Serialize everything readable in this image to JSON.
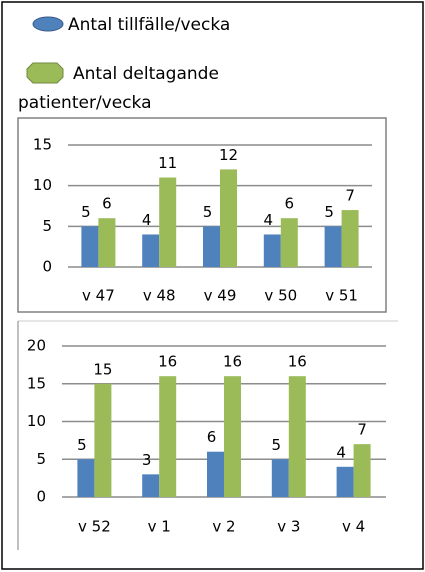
{
  "chart_data": [
    {
      "type": "bar",
      "categories": [
        "v 47",
        "v 48",
        "v 49",
        "v 50",
        "v 51"
      ],
      "series": [
        {
          "name": "Antal tillfälle/vecka",
          "color": "#4f81bd",
          "values": [
            5,
            4,
            5,
            4,
            5
          ]
        },
        {
          "name": "Antal deltagande patienter/vecka",
          "color": "#9bbb59",
          "values": [
            6,
            11,
            12,
            6,
            7
          ]
        }
      ],
      "ylim": [
        0,
        15
      ],
      "yticks": [
        0,
        5,
        10,
        15
      ],
      "grid": true
    },
    {
      "type": "bar",
      "categories": [
        "v 52",
        "v 1",
        "v 2",
        "v 3",
        "v 4"
      ],
      "series": [
        {
          "color": "#4f81bd",
          "values": [
            5,
            3,
            6,
            5,
            4
          ]
        },
        {
          "color": "#9bbb59",
          "values": [
            15,
            16,
            16,
            16,
            7
          ]
        }
      ],
      "ylim": [
        0,
        20
      ],
      "yticks": [
        0,
        5,
        10,
        15,
        20
      ],
      "grid": true
    }
  ]
}
